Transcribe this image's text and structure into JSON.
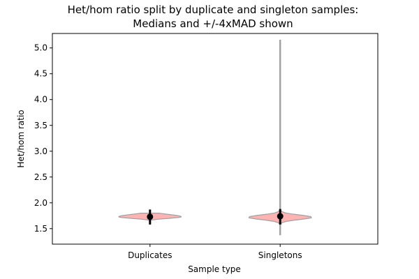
{
  "chart_data": {
    "type": "violin",
    "title_line1": "Het/hom ratio split by duplicate and singleton samples:",
    "title_line2": "Medians and +/-4xMAD shown",
    "xlabel": "Sample type",
    "ylabel": "Het/hom ratio",
    "categories": [
      "Duplicates",
      "Singletons"
    ],
    "ylim": [
      1.2,
      5.28
    ],
    "yticks": [
      1.5,
      2.0,
      2.5,
      3.0,
      3.5,
      4.0,
      4.5,
      5.0
    ],
    "ytick_labels": [
      "1.5",
      "2.0",
      "2.5",
      "3.0",
      "3.5",
      "4.0",
      "4.5",
      "5.0"
    ],
    "grid": false,
    "series": [
      {
        "category": "Duplicates",
        "min": 1.66,
        "max": 1.8,
        "median": 1.73,
        "mad_low": 1.58,
        "mad_high": 1.87,
        "density_mode": 1.73,
        "max_halfwidth": 0.48
      },
      {
        "category": "Singletons",
        "min": 1.38,
        "max": 5.15,
        "median": 1.74,
        "mad_low": 1.58,
        "mad_high": 1.88,
        "density_mode": 1.72,
        "max_halfwidth": 0.48
      }
    ],
    "colors": {
      "violin_fill": "#ff9999",
      "violin_edge": "#a0a0a0",
      "median_marker": "#000000",
      "mad_bar": "#000000"
    }
  }
}
